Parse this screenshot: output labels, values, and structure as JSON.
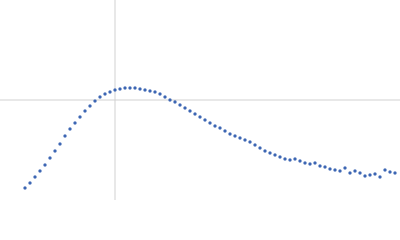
{
  "chart_data": {
    "type": "scatter",
    "color": "#3d66b3",
    "xlim": [
      0,
      400
    ],
    "ylim": [
      0,
      200
    ],
    "xref": 115,
    "yref": 100,
    "x": [
      25,
      30,
      35,
      40,
      45,
      50,
      55,
      60,
      65,
      70,
      75,
      80,
      85,
      90,
      95,
      100,
      105,
      110,
      115,
      120,
      125,
      130,
      135,
      140,
      145,
      150,
      155,
      160,
      165,
      170,
      175,
      180,
      185,
      190,
      195,
      200,
      205,
      210,
      215,
      220,
      225,
      230,
      235,
      240,
      245,
      250,
      255,
      260,
      265,
      270,
      275,
      280,
      285,
      290,
      295,
      300,
      305,
      310,
      315,
      320,
      325,
      330,
      335,
      340,
      345,
      350,
      355,
      360,
      365,
      370,
      375,
      380,
      385,
      390,
      395
    ],
    "values": [
      12,
      17,
      23,
      29,
      35,
      42,
      49,
      56,
      64,
      71,
      77,
      83,
      89,
      94,
      99,
      103,
      106,
      108,
      110,
      111,
      112,
      112,
      112,
      111,
      110,
      109,
      108,
      106,
      103,
      100,
      98,
      95,
      92,
      89,
      86,
      83,
      80,
      77,
      74,
      72,
      69,
      66,
      64,
      62,
      60,
      58,
      55,
      52,
      49,
      47,
      45,
      43,
      41,
      40,
      41,
      39,
      37,
      36,
      37,
      34,
      33,
      31,
      30,
      29,
      32,
      27,
      29,
      27,
      24,
      25,
      26,
      23,
      30,
      28,
      27
    ]
  }
}
